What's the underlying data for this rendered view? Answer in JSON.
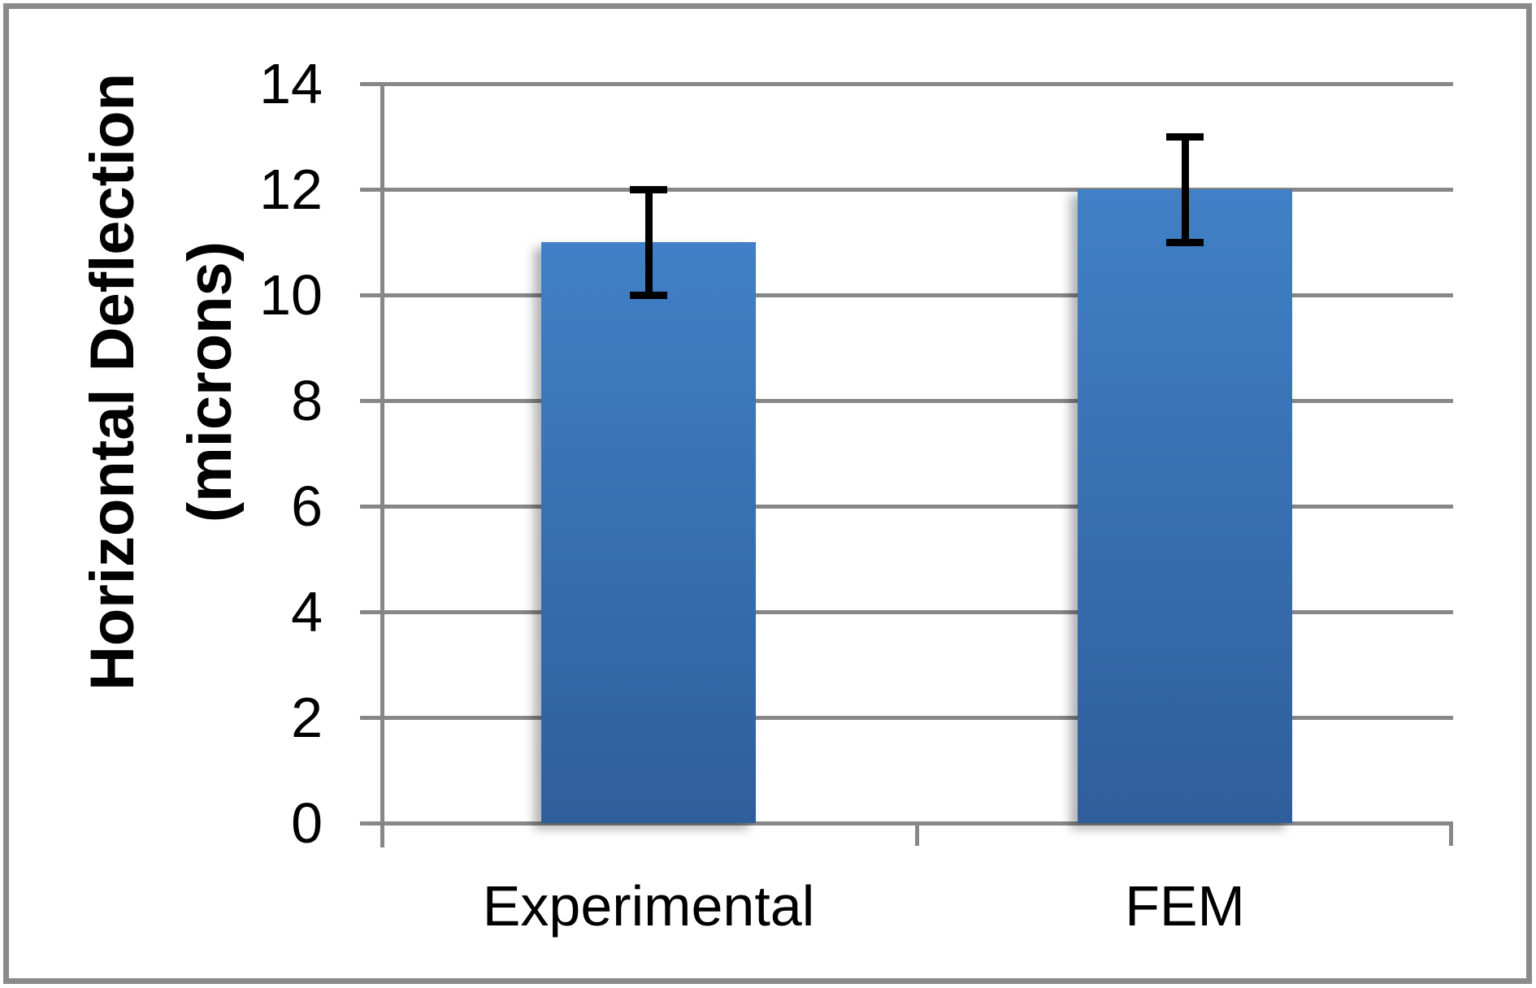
{
  "chart_data": {
    "type": "bar",
    "title": "",
    "categories": [
      "Experimental",
      "FEM"
    ],
    "values": [
      11,
      12
    ],
    "error_plus": [
      1,
      1
    ],
    "error_minus": [
      1,
      1
    ],
    "error_whiskers": [
      {
        "category": "Experimental",
        "low": 10,
        "high": 12
      },
      {
        "category": "FEM",
        "low": 11,
        "high": 13
      }
    ],
    "xlabel": "",
    "ylabel": "Horizontal Deflection (microns)",
    "ylabel_lines": [
      "Horizontal Deflection",
      "(microns)"
    ],
    "yticks": [
      0,
      2,
      4,
      6,
      8,
      10,
      12,
      14
    ],
    "ytick_labels": [
      "0",
      "2",
      "4",
      "6",
      "8",
      "10",
      "12",
      "14"
    ],
    "ylim": [
      0,
      14
    ],
    "grid": true,
    "legend_position": "none",
    "colors": {
      "bar_top": "#4180c6",
      "bar_bottom": "#2f5e9b",
      "gridline": "#878787",
      "axis": "#878787",
      "error_bar": "#000000",
      "text": "#000000",
      "frame_border": "#8a8a8a",
      "background": "#ffffff"
    }
  }
}
